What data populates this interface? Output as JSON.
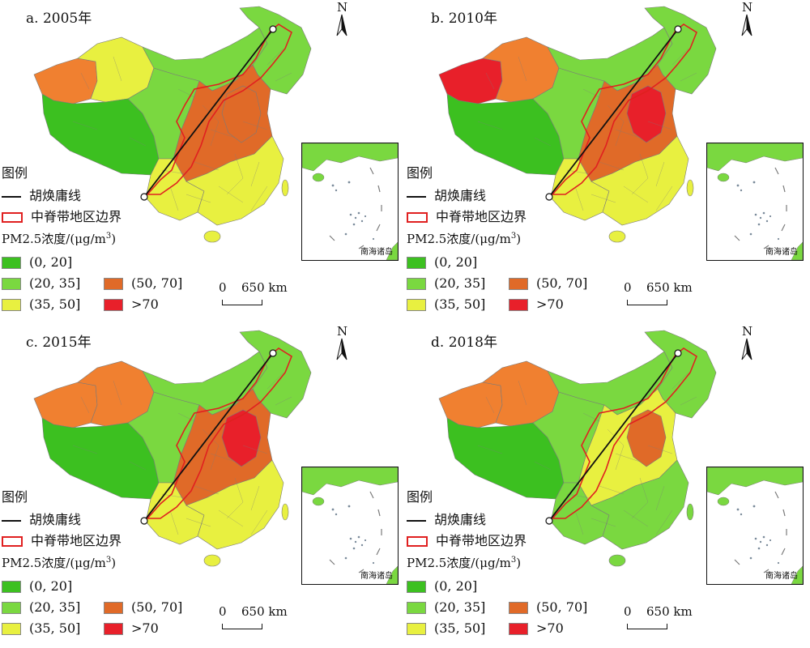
{
  "panels": [
    {
      "title": "a. 2005年",
      "regions": {
        "xinjiang_w": "#f08030",
        "xinjiang_e": "#e8f040",
        "qinghai": "#7ad840",
        "tibet": "#3cc020",
        "inner_mongolia": "#7ad840",
        "northeast": "#7ad840",
        "core": "#e06a28",
        "core_hot": "#e06a28",
        "south": "#e8f040",
        "southwest": "#e8f040"
      }
    },
    {
      "title": "b. 2010年",
      "regions": {
        "xinjiang_w": "#e8202a",
        "xinjiang_e": "#f08030",
        "qinghai": "#7ad840",
        "tibet": "#3cc020",
        "inner_mongolia": "#7ad840",
        "northeast": "#7ad840",
        "core": "#e06a28",
        "core_hot": "#e8202a",
        "south": "#e8f040",
        "southwest": "#e8f040"
      }
    },
    {
      "title": "c. 2015年",
      "regions": {
        "xinjiang_w": "#f08030",
        "xinjiang_e": "#f08030",
        "qinghai": "#7ad840",
        "tibet": "#3cc020",
        "inner_mongolia": "#7ad840",
        "northeast": "#7ad840",
        "core": "#e06a28",
        "core_hot": "#e8202a",
        "south": "#e8f040",
        "southwest": "#e8f040"
      }
    },
    {
      "title": "d. 2018年",
      "regions": {
        "xinjiang_w": "#f08030",
        "xinjiang_e": "#f08030",
        "qinghai": "#7ad840",
        "tibet": "#3cc020",
        "inner_mongolia": "#7ad840",
        "northeast": "#7ad840",
        "core": "#e8f040",
        "core_hot": "#e06a28",
        "south": "#7ad840",
        "southwest": "#7ad840"
      }
    }
  ],
  "north_label": "N",
  "legend": {
    "title": "图例",
    "huline": "胡焕庸线",
    "boundary": "中脊带地区边界",
    "unit_prefix": "PM2.5浓度/(μg/m",
    "unit_sup": "3",
    "unit_suffix": ")",
    "classes": [
      {
        "label": "(0, 20]",
        "color": "#3cc020"
      },
      {
        "label": "(20, 35]",
        "color": "#7ad840"
      },
      {
        "label": "(35, 50]",
        "color": "#e8f040"
      },
      {
        "label": "(50, 70]",
        "color": "#e06a28"
      },
      {
        "label": ">70",
        "color": "#e8202a"
      }
    ]
  },
  "scale": {
    "zero": "0",
    "distance": "650 km"
  },
  "inset_caption": "南海诸岛",
  "colors": {
    "huline": "#111111",
    "boundary": "#e02020",
    "district_line": "#7a7a7a"
  }
}
